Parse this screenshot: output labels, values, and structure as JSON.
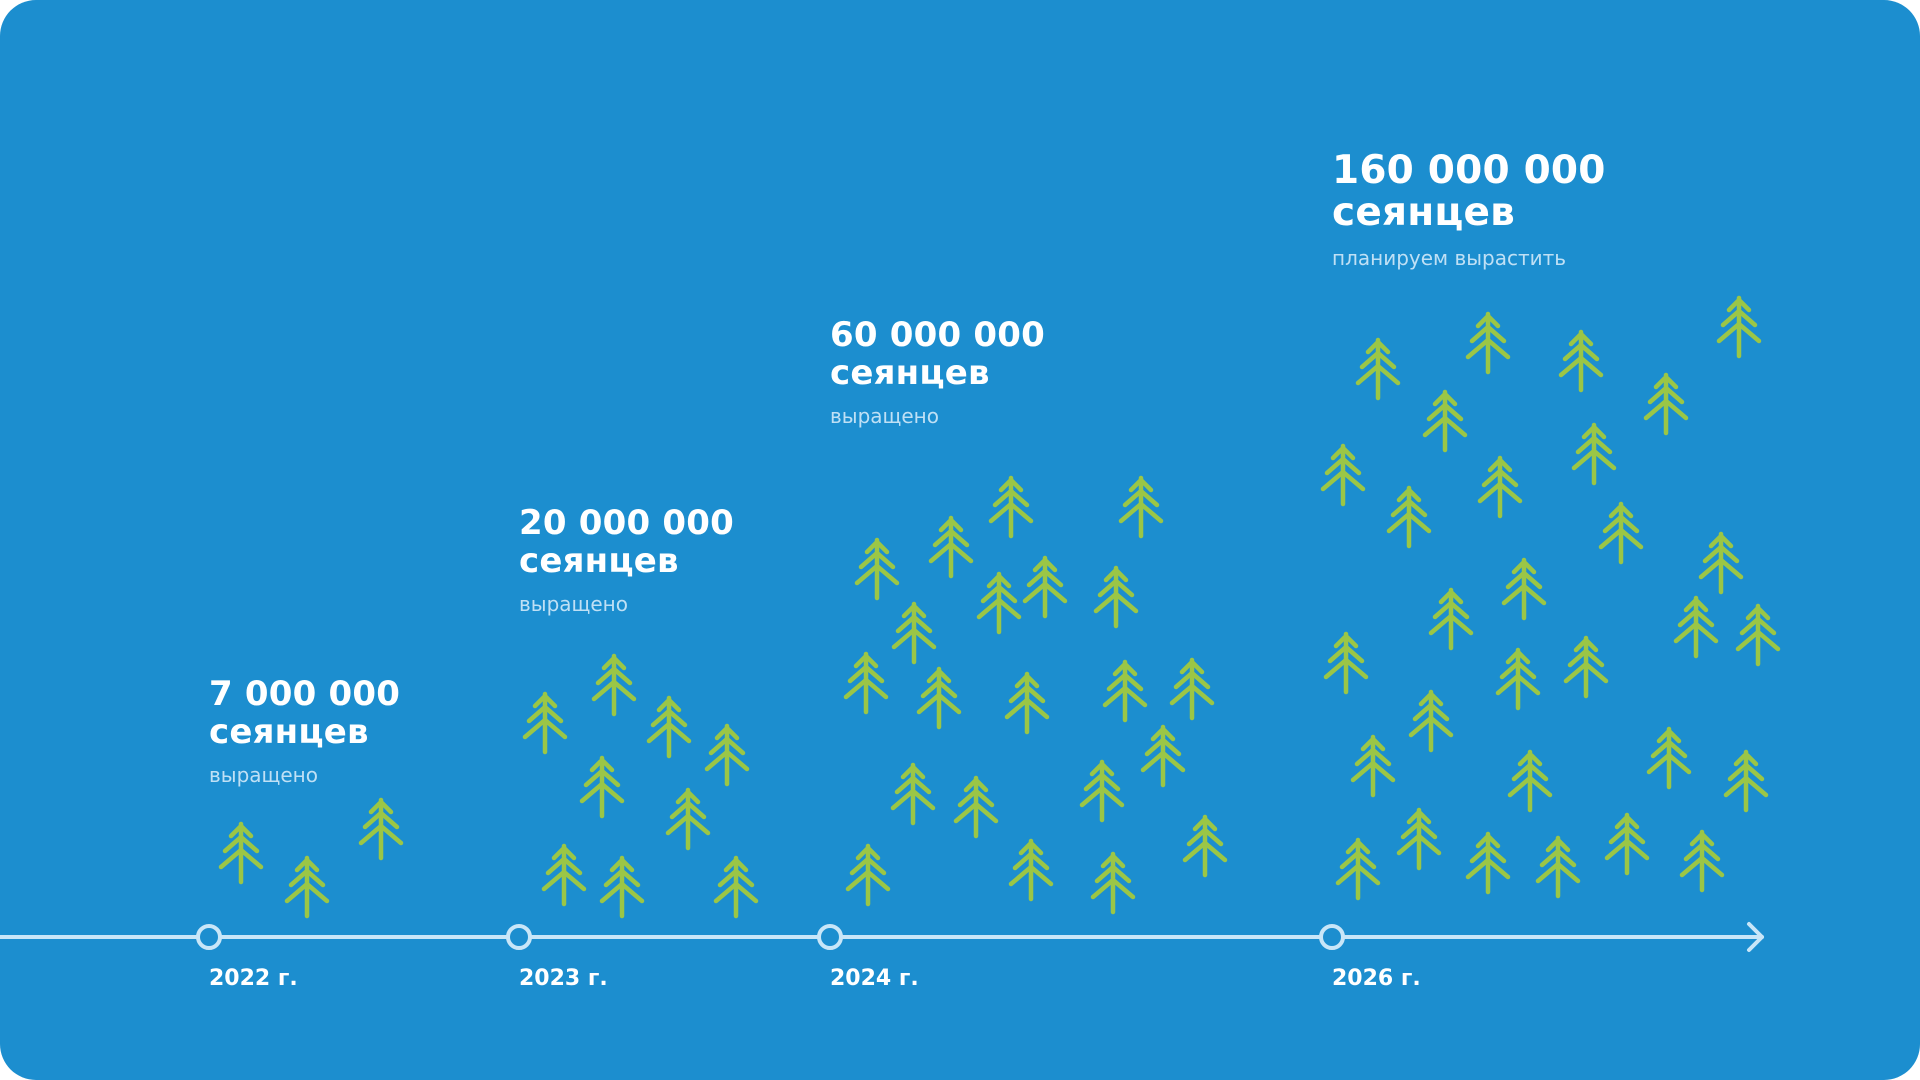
{
  "colors": {
    "background": "#1c8ecf",
    "tree": "#9bc646",
    "axis": "#c8e6f8",
    "text": "#ffffff",
    "subtext": "#bfe0f5"
  },
  "unit_label": "сеянцев",
  "milestones": [
    {
      "value": "7 000 000",
      "unit": "сеянцев",
      "note": "выращено",
      "year": "2022 г."
    },
    {
      "value": "20 000 000",
      "unit": "сеянцев",
      "note": "выращено",
      "year": "2023 г."
    },
    {
      "value": "60 000 000",
      "unit": "сеянцев",
      "note": "выращено",
      "year": "2024 г."
    },
    {
      "value": "160 000 000",
      "unit": "сеянцев",
      "note": "планируем вырастить",
      "year": "2026 г."
    }
  ],
  "icon": "tree-icon"
}
